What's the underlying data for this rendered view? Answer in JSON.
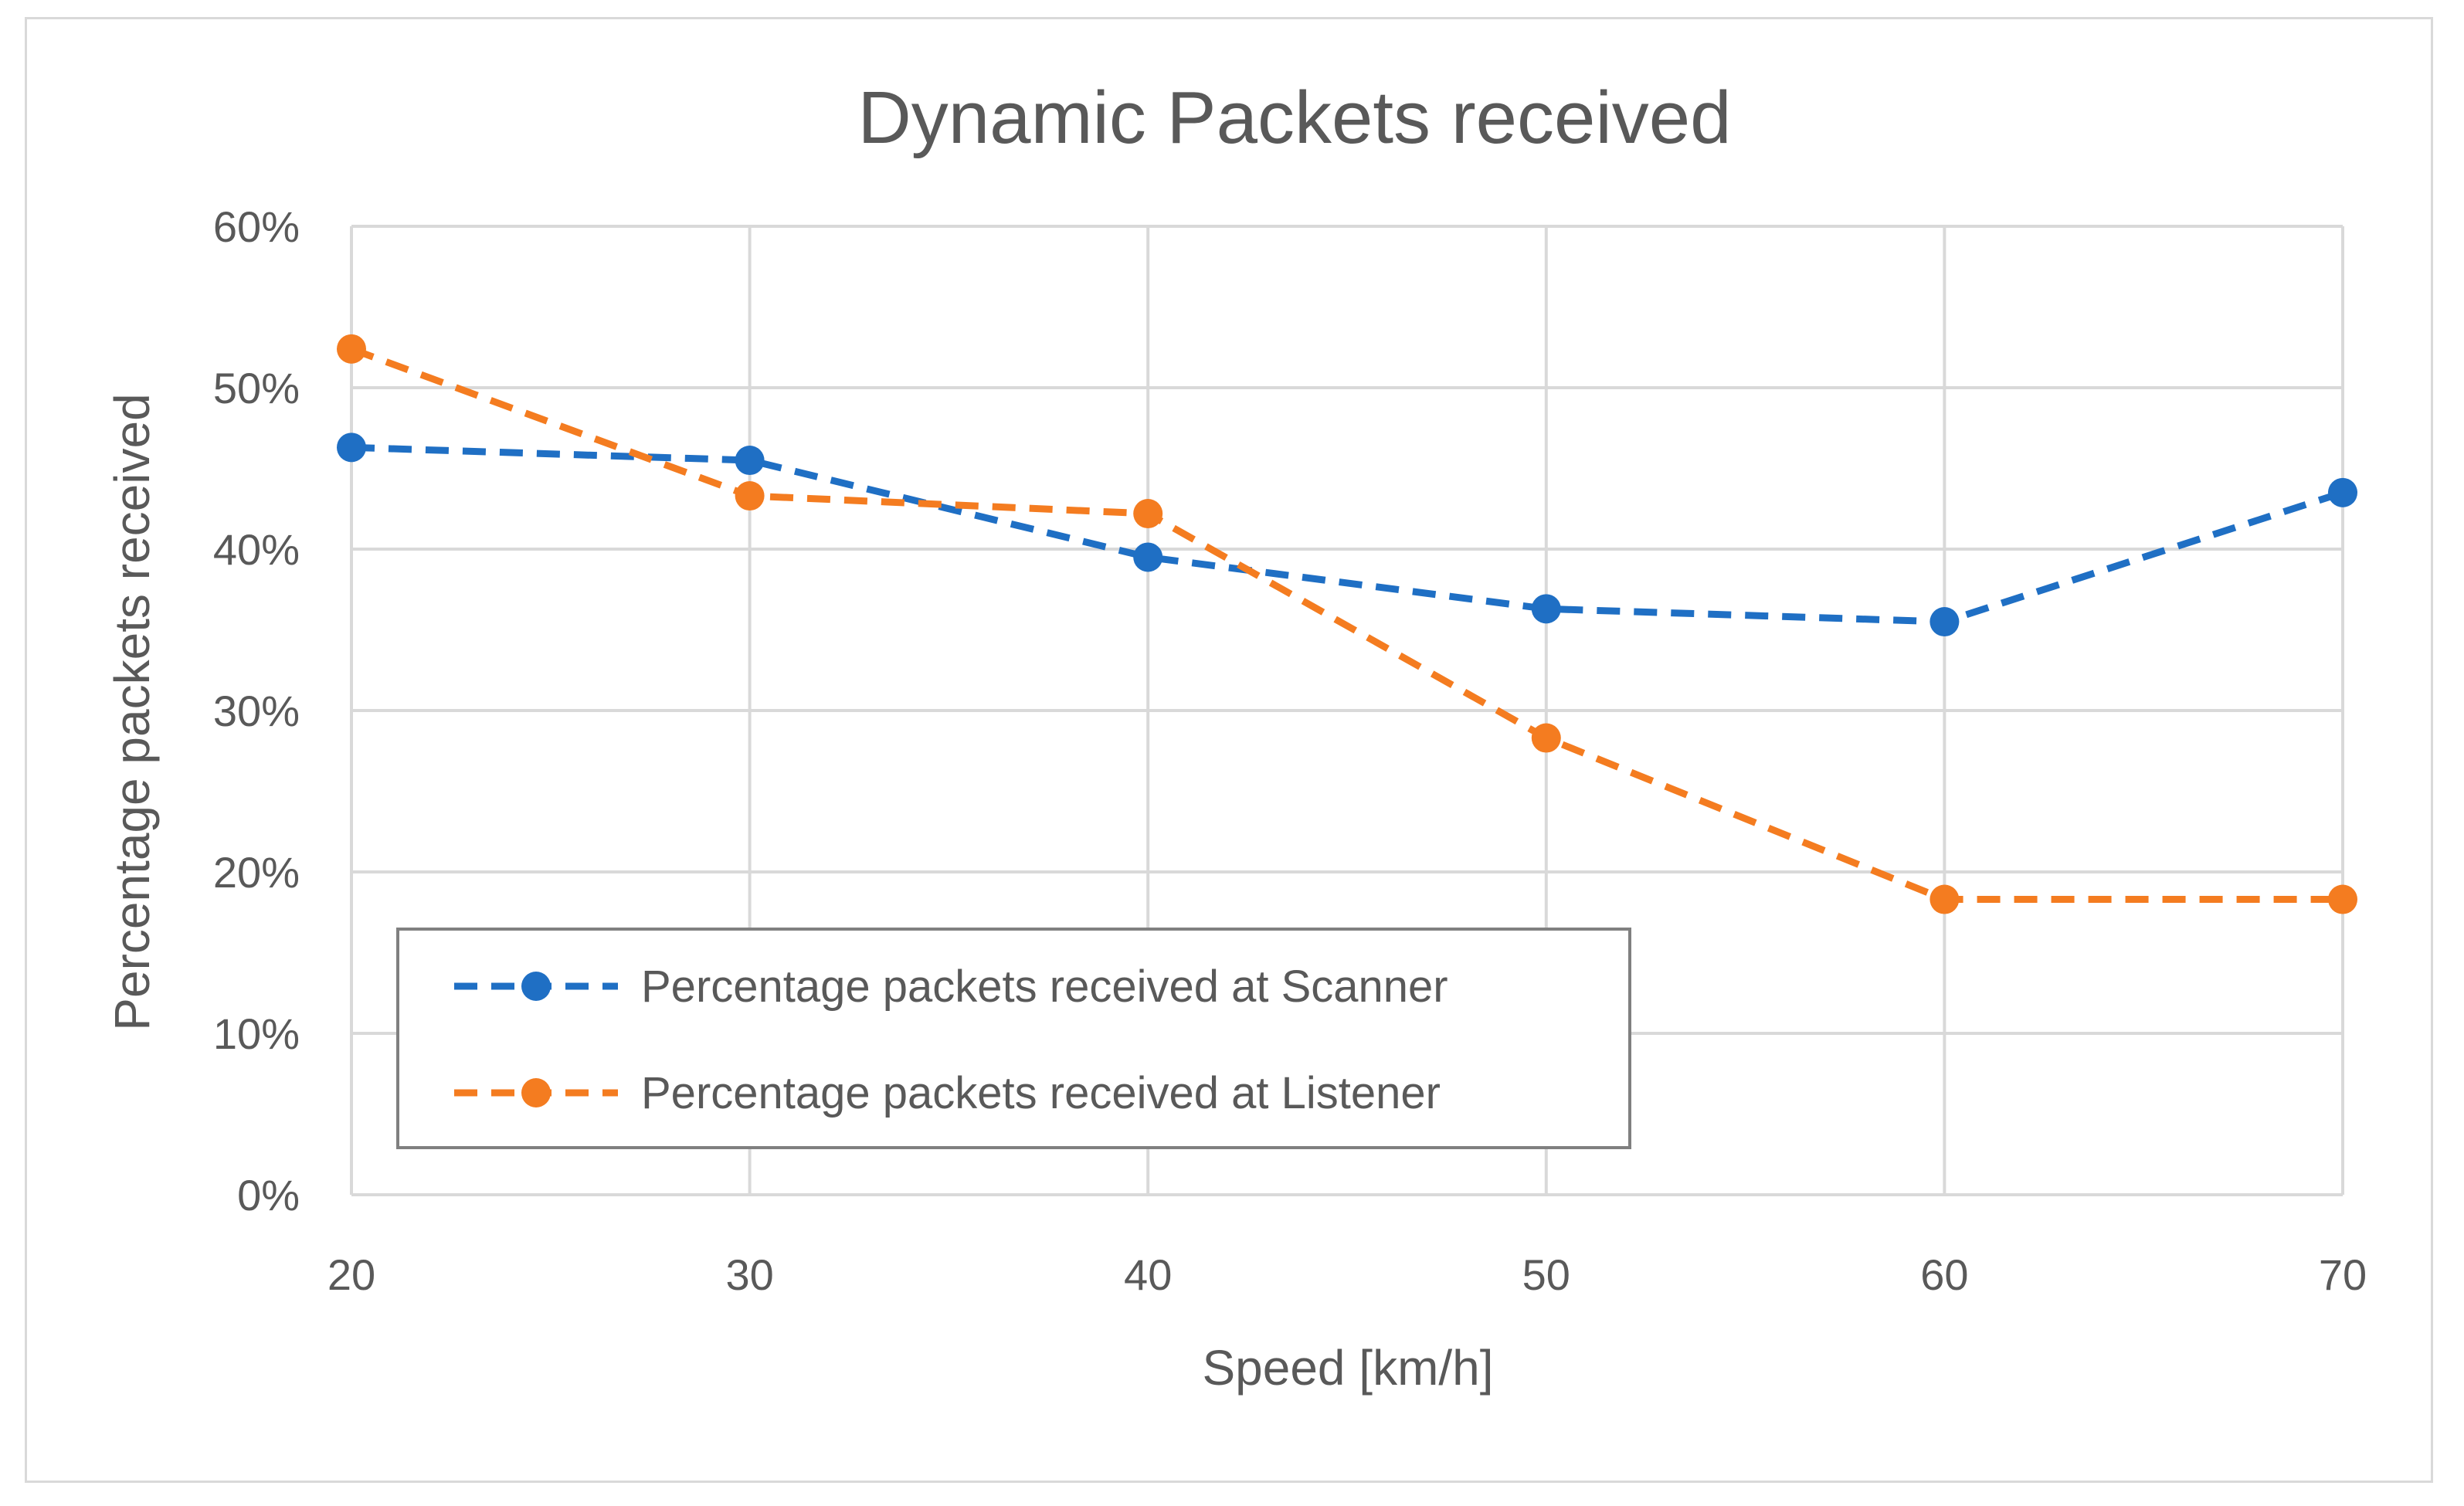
{
  "chart_data": {
    "type": "line",
    "title": "Dynamic Packets received",
    "xlabel": "Speed [km/h]",
    "ylabel": "Percentage  packets received",
    "x": [
      20,
      30,
      40,
      50,
      60,
      70
    ],
    "x_tick_labels": [
      "20",
      "30",
      "40",
      "50",
      "60",
      "70"
    ],
    "ylim": [
      0,
      0.6
    ],
    "y_ticks": [
      0,
      0.1,
      0.2,
      0.3,
      0.4,
      0.5,
      0.6
    ],
    "y_tick_labels": [
      "0%",
      "10%",
      "20%",
      "30%",
      "40%",
      "50%",
      "60%"
    ],
    "grid": true,
    "legend_position": "lower-left",
    "series": [
      {
        "name": "Percentage packets received at Scanner",
        "color": "#1f6fc4",
        "values": [
          0.463,
          0.455,
          0.395,
          0.363,
          0.355,
          0.435
        ]
      },
      {
        "name": "Percentage packets received at Listener",
        "color": "#f47c20",
        "values": [
          0.524,
          0.433,
          0.422,
          0.283,
          0.183,
          0.183
        ]
      }
    ]
  }
}
